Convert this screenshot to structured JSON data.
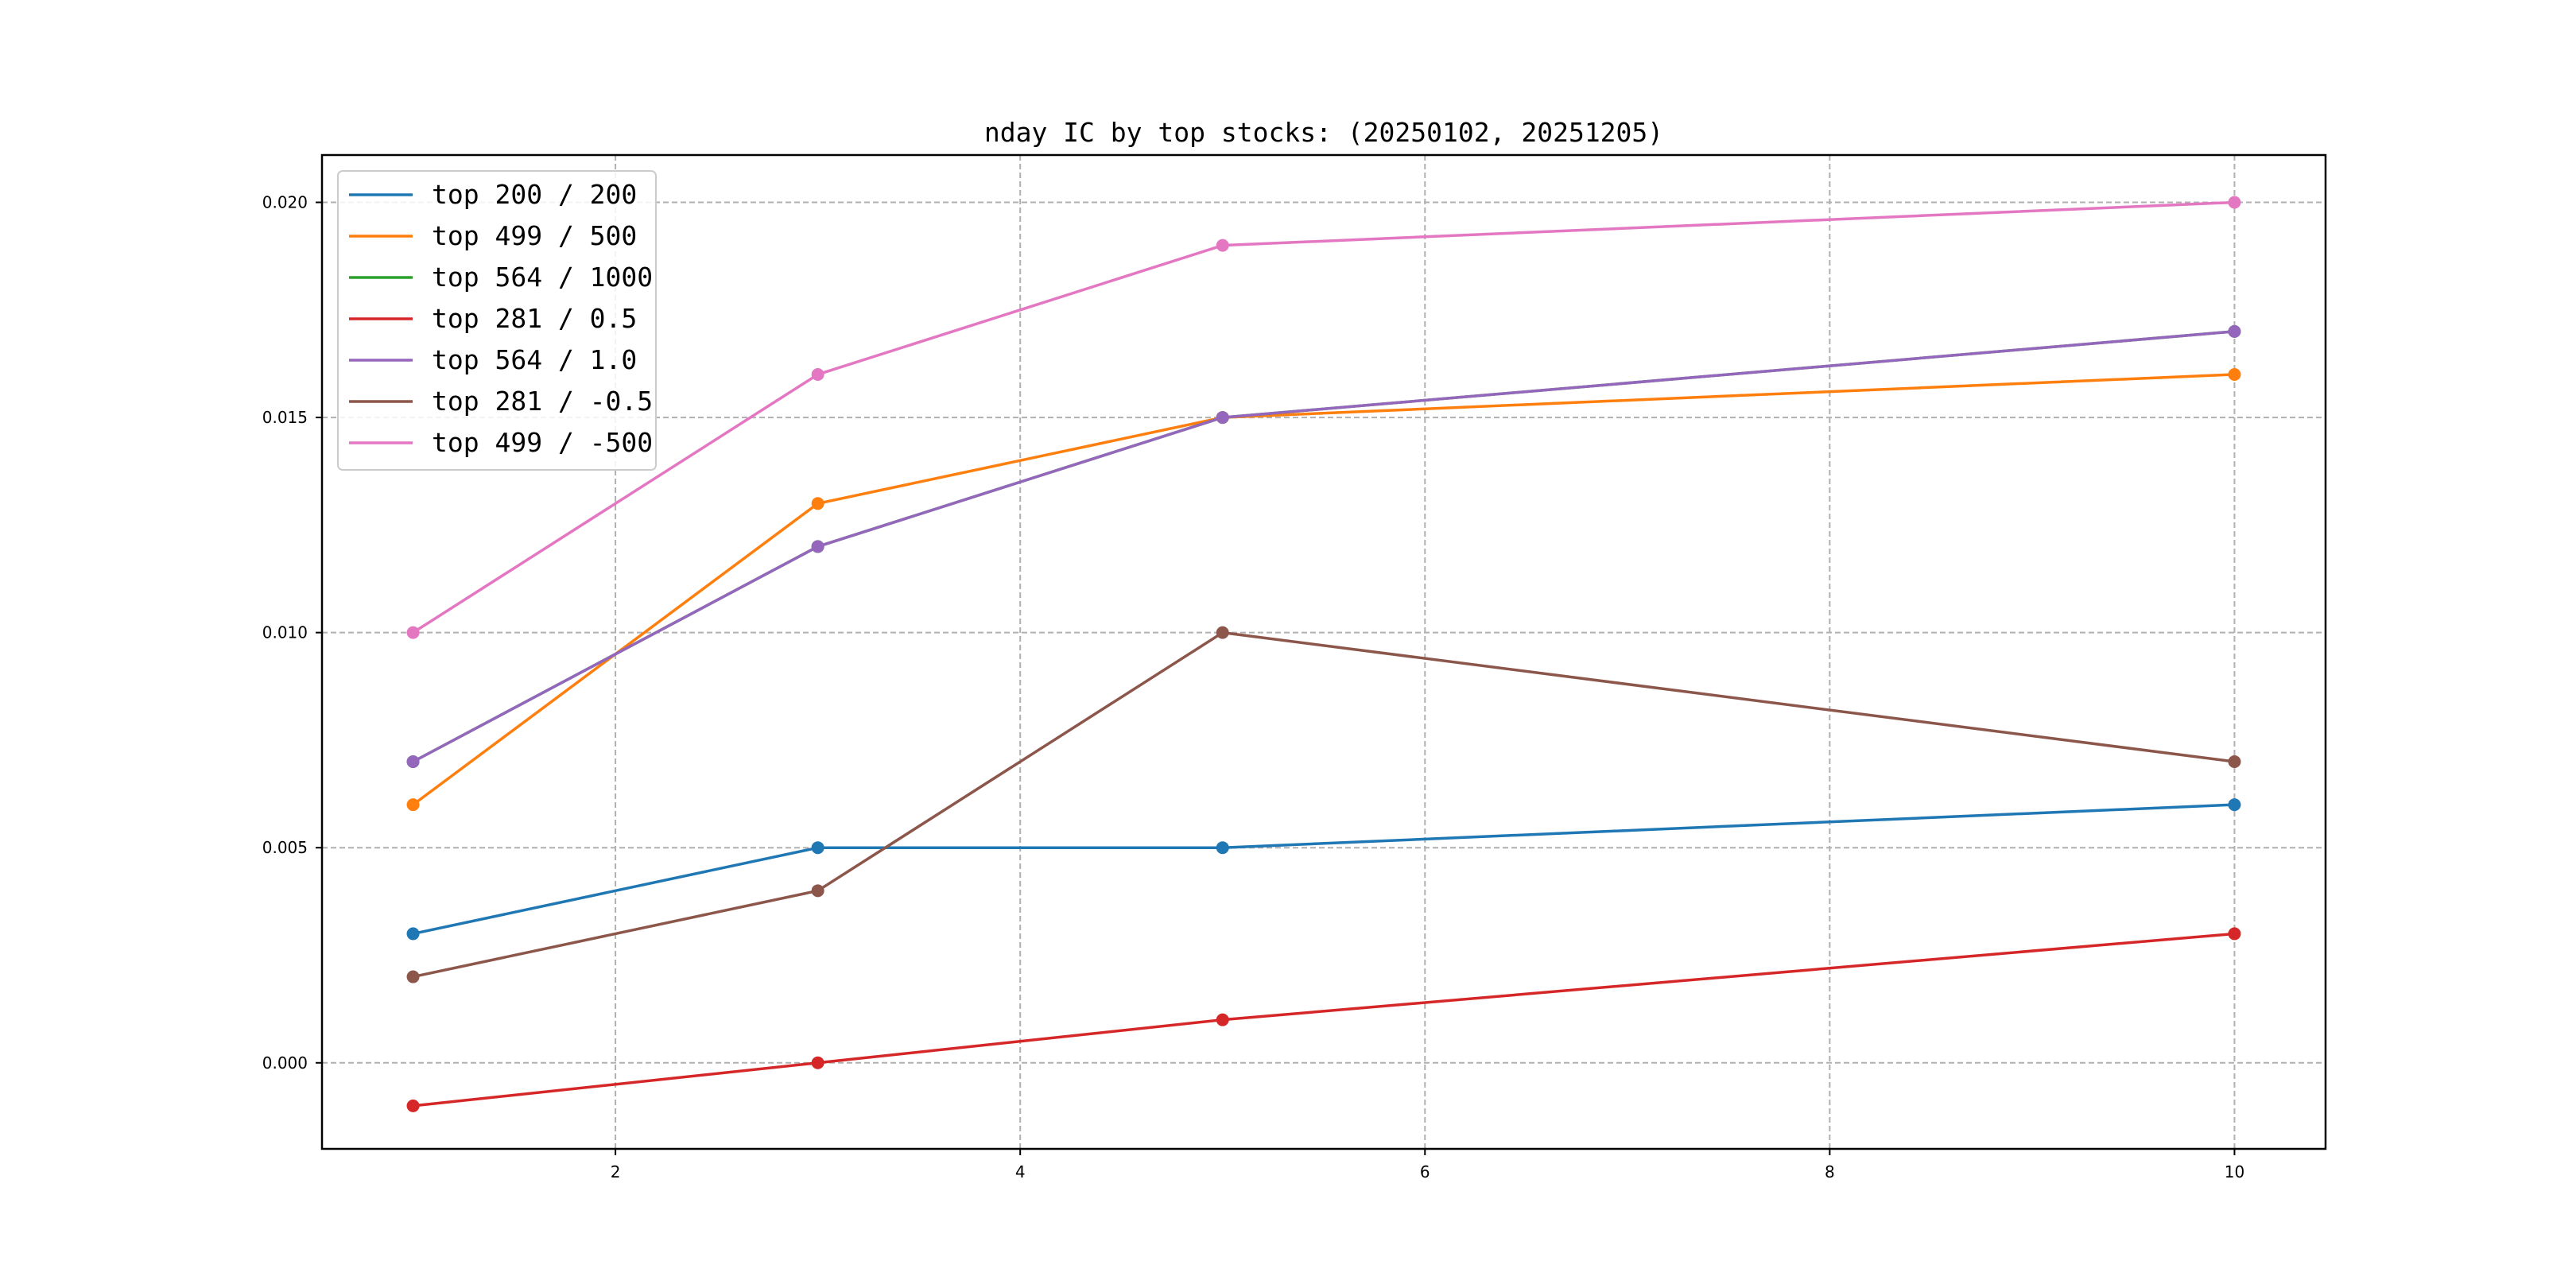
{
  "chart_data": {
    "type": "line",
    "title": "nday IC by top stocks: (20250102, 20251205)",
    "xlabel": "",
    "ylabel": "",
    "x": [
      1,
      3,
      5,
      10
    ],
    "xlim": [
      0.55,
      10.45
    ],
    "ylim": [
      -0.002,
      0.0211
    ],
    "xticks": [
      2,
      4,
      6,
      8,
      10
    ],
    "xtick_labels": [
      "2",
      "4",
      "6",
      "8",
      "10"
    ],
    "yticks": [
      0.0,
      0.005,
      0.01,
      0.015,
      0.02
    ],
    "ytick_labels": [
      "0.000",
      "0.005",
      "0.010",
      "0.015",
      "0.020"
    ],
    "grid": true,
    "legend_position": "top-left",
    "markers": true,
    "series": [
      {
        "name": "top 200 / 200",
        "color": "#1f77b4",
        "values": [
          0.003,
          0.005,
          0.005,
          0.006
        ]
      },
      {
        "name": "top 499 / 500",
        "color": "#ff7f0e",
        "values": [
          0.006,
          0.013,
          0.015,
          0.016
        ]
      },
      {
        "name": "top 564 / 1000",
        "color": "#2ca02c",
        "values": [
          0.007,
          0.012,
          0.015,
          0.017
        ]
      },
      {
        "name": "top 281 / 0.5",
        "color": "#d62728",
        "values": [
          -0.001,
          0.0,
          0.001,
          0.003
        ]
      },
      {
        "name": "top 564 / 1.0",
        "color": "#9467bd",
        "values": [
          0.007,
          0.012,
          0.015,
          0.017
        ]
      },
      {
        "name": "top 281 / -0.5",
        "color": "#8c564b",
        "values": [
          0.002,
          0.004,
          0.01,
          0.007
        ]
      },
      {
        "name": "top 499 / -500",
        "color": "#e377c2",
        "values": [
          0.01,
          0.016,
          0.019,
          0.02
        ]
      }
    ]
  }
}
